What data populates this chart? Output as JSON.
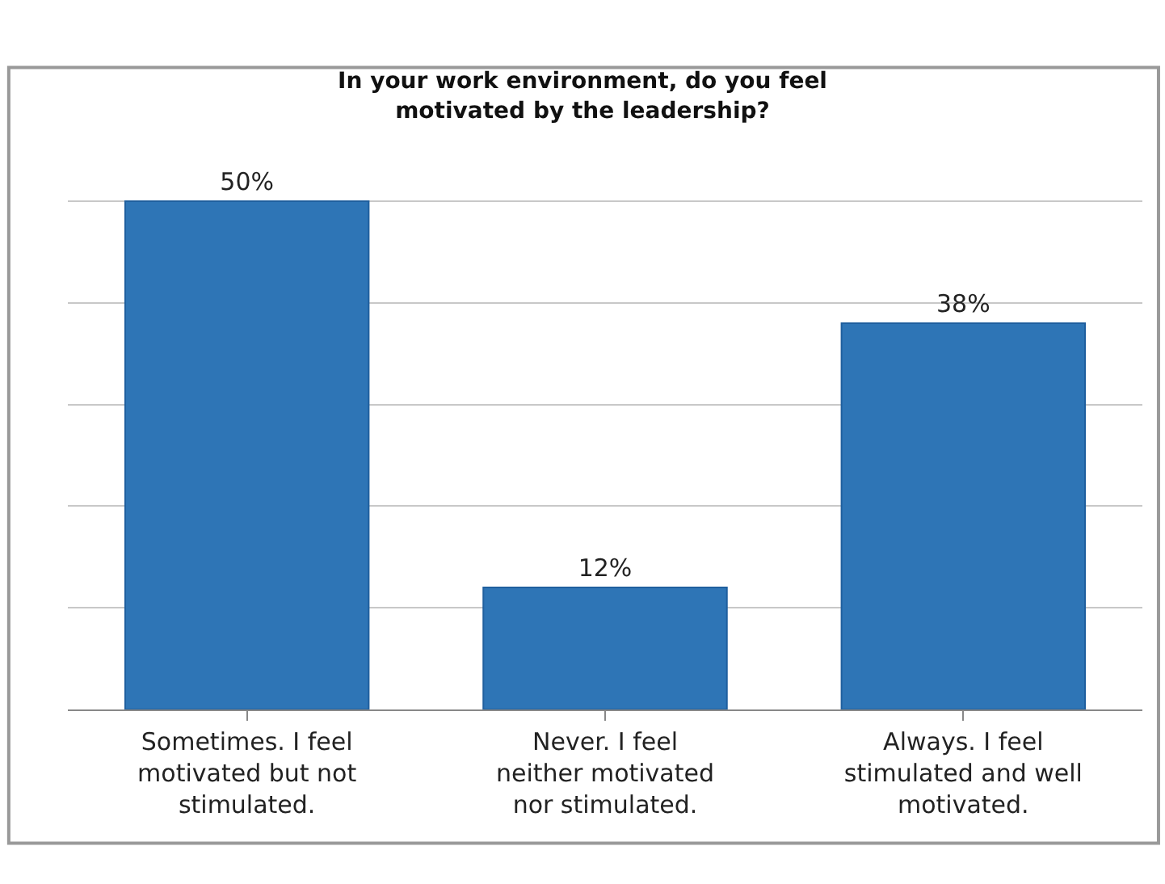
{
  "chart_data": {
    "type": "bar",
    "title": "In your work environment, do you feel\nmotivated by the leadership?",
    "categories": [
      "Sometimes. I feel\nmotivated but not\nstimulated.",
      "Never. I feel\nneither motivated\nnor stimulated.",
      "Always. I feel\nstimulated and well\nmotivated."
    ],
    "values": [
      50,
      12,
      38
    ],
    "value_labels": [
      "50%",
      "12%",
      "38%"
    ],
    "color": "#2e75b6",
    "grid": "y",
    "tick_labels": "x"
  }
}
